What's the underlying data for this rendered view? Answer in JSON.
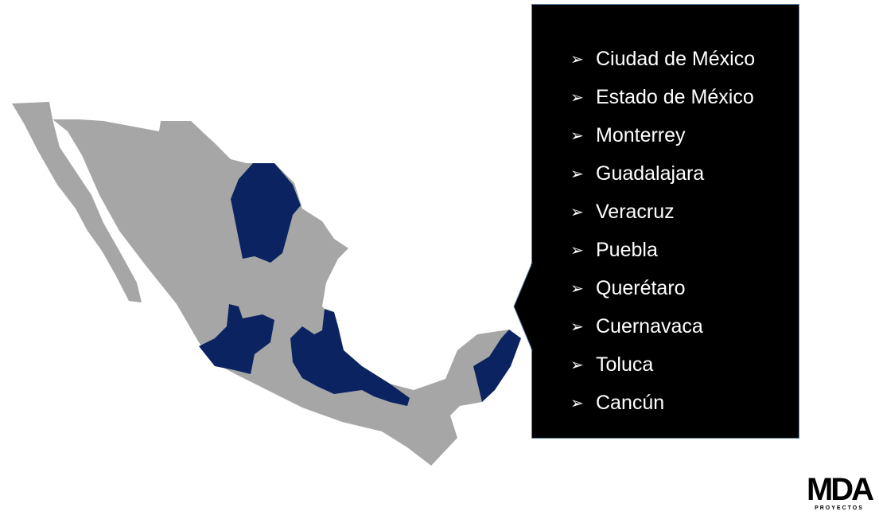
{
  "colors": {
    "land": "#a6a6a6",
    "highlight": "#0b2461",
    "callout_bg": "#000000",
    "text": "#ffffff"
  },
  "list": {
    "bullet_icon": "arrowhead-bullet",
    "items": [
      "Ciudad de México",
      "Estado de México",
      "Monterrey",
      "Guadalajara",
      "Veracruz",
      "Puebla",
      "Querétaro",
      "Cuernavaca",
      "Toluca",
      "Cancún"
    ]
  },
  "logo": {
    "mark": "MDA",
    "sub": "PROYECTOS"
  }
}
